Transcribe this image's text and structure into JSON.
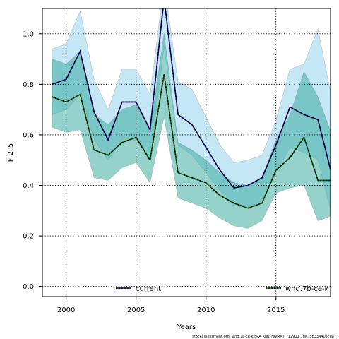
{
  "chart_data": {
    "type": "line",
    "xlabel": "Years",
    "ylabel": "F̅ 2–5",
    "xlim": [
      1998.3,
      2018.9
    ],
    "ylim": [
      -0.04,
      1.1
    ],
    "x_ticks": [
      2000,
      2005,
      2010,
      2015
    ],
    "y_ticks": [
      0.0,
      0.2,
      0.4,
      0.6,
      0.8,
      1.0
    ],
    "grid": true,
    "legend_position": "bottom",
    "x": [
      1999,
      2000,
      2001,
      2002,
      2003,
      2004,
      2005,
      2006,
      2007,
      2008,
      2009,
      2010,
      2011,
      2012,
      2013,
      2014,
      2015,
      2016,
      2017,
      2018,
      2019
    ],
    "series": [
      {
        "name": "current",
        "color": "#4ab2e0",
        "line_color": "#00008b",
        "values": [
          0.8,
          0.82,
          0.93,
          0.69,
          0.58,
          0.73,
          0.73,
          0.62,
          1.14,
          0.68,
          0.64,
          0.55,
          0.46,
          0.39,
          0.4,
          0.43,
          0.56,
          0.71,
          0.68,
          0.66,
          0.44
        ],
        "lower": [
          0.68,
          0.7,
          0.76,
          0.58,
          0.5,
          0.58,
          0.58,
          0.5,
          0.95,
          0.56,
          0.52,
          0.45,
          0.38,
          0.32,
          0.31,
          0.34,
          0.45,
          0.55,
          0.53,
          0.5,
          0.28
        ],
        "upper": [
          0.94,
          0.96,
          1.09,
          0.82,
          0.7,
          0.86,
          0.86,
          0.76,
          1.2,
          0.81,
          0.78,
          0.67,
          0.56,
          0.49,
          0.5,
          0.52,
          0.66,
          0.86,
          0.88,
          1.02,
          0.74
        ]
      },
      {
        "name": "whg.7b-ce-k_",
        "color": "#2ea59a",
        "line_color": "#006400",
        "values": [
          0.75,
          0.73,
          0.76,
          0.54,
          0.52,
          0.57,
          0.59,
          0.5,
          0.84,
          0.45,
          0.43,
          0.41,
          0.36,
          0.33,
          0.31,
          0.33,
          0.46,
          0.51,
          0.59,
          0.42,
          0.42
        ],
        "lower": [
          0.63,
          0.61,
          0.62,
          0.43,
          0.42,
          0.47,
          0.49,
          0.41,
          0.67,
          0.35,
          0.33,
          0.31,
          0.27,
          0.24,
          0.23,
          0.26,
          0.37,
          0.39,
          0.4,
          0.26,
          0.28
        ],
        "upper": [
          0.9,
          0.88,
          0.93,
          0.68,
          0.64,
          0.7,
          0.72,
          0.62,
          1.0,
          0.57,
          0.54,
          0.5,
          0.45,
          0.41,
          0.4,
          0.43,
          0.58,
          0.68,
          0.85,
          0.75,
          0.6
        ]
      }
    ]
  },
  "footer_text": "stockassessment.org, whg.7b-ce-k  FRA  Run: revMAT,  r12911 , git: 5b334405cda7"
}
